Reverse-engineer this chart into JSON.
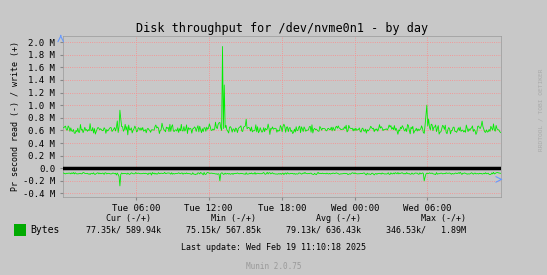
{
  "title": "Disk throughput for /dev/nvme0n1 - by day",
  "ylabel": "Pr second read (-) / write (+)",
  "xlabel_ticks": [
    "Tue 06:00",
    "Tue 12:00",
    "Tue 18:00",
    "Wed 00:00",
    "Wed 06:00"
  ],
  "ylim": [
    -0.45,
    2.1
  ],
  "yticks": [
    -0.4,
    -0.2,
    0.0,
    0.2,
    0.4,
    0.6,
    0.8,
    1.0,
    1.2,
    1.4,
    1.6,
    1.8,
    2.0
  ],
  "ytick_labels": [
    "-0.4 M",
    "-0.2 M",
    "0.0",
    "0.2 M",
    "0.4 M",
    "0.6 M",
    "0.8 M",
    "1.0 M",
    "1.2 M",
    "1.4 M",
    "1.6 M",
    "1.8 M",
    "2.0 M"
  ],
  "bg_color": "#c8c8c8",
  "plot_bg_color": "#c8c8c8",
  "line_color": "#00ee00",
  "zero_line_color": "#000000",
  "grid_color": "#ff8888",
  "right_label": "RRDTOOL / TOBI OETIKER",
  "legend_label": "Bytes",
  "legend_color": "#00aa00",
  "footer": "Last update: Wed Feb 19 11:10:18 2025",
  "munin_version": "Munin 2.0.75",
  "stats_row1": "     Cur (-/+)            Min (-/+)            Avg (-/+)            Max (-/+)",
  "stats_row2": " 77.35k/ 589.94k     75.15k/ 567.85k     79.13k/ 636.43k     346.53k/   1.89M",
  "baseline_write": 0.6,
  "baseline_read": -0.085,
  "n_points": 500,
  "seed": 42
}
